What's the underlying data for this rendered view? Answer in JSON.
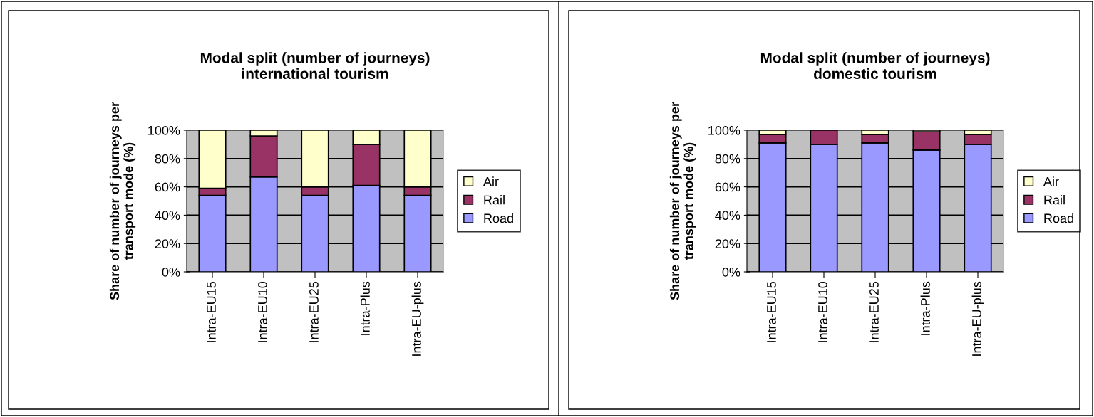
{
  "chart_data": [
    {
      "type": "bar",
      "title": "Modal split (number of journeys)\ninternational tourism",
      "ylabel": "Share of number of journeys per\ntransport mode (%)",
      "categories": [
        "Intra-EU15",
        "Intra-EU10",
        "Intra-EU25",
        "Intra-Plus",
        "Intra-EU-plus"
      ],
      "stacked": true,
      "series": [
        {
          "name": "Road",
          "color": "#9999ff",
          "values": [
            54,
            67,
            54,
            61,
            54
          ]
        },
        {
          "name": "Rail",
          "color": "#993366",
          "values": [
            5,
            29,
            6,
            29,
            6
          ]
        },
        {
          "name": "Air",
          "color": "#ffffcc",
          "values": [
            41,
            4,
            40,
            10,
            40
          ]
        }
      ],
      "ylim": [
        0,
        100
      ],
      "yticks": [
        {
          "value": 0,
          "label": "0%"
        },
        {
          "value": 20,
          "label": "20%"
        },
        {
          "value": 40,
          "label": "40%"
        },
        {
          "value": 60,
          "label": "60%"
        },
        {
          "value": 80,
          "label": "80%"
        },
        {
          "value": 100,
          "label": "100%"
        }
      ],
      "grid": "y",
      "legend": "right"
    },
    {
      "type": "bar",
      "title": "Modal split (number of journeys)\ndomestic tourism",
      "ylabel": "Share of number of journeys per\ntransport mode (%)",
      "categories": [
        "Intra-EU15",
        "Intra-EU10",
        "Intra-EU25",
        "Intra-Plus",
        "Intra-EU-plus"
      ],
      "stacked": true,
      "series": [
        {
          "name": "Road",
          "color": "#9999ff",
          "values": [
            91,
            90,
            91,
            86,
            90
          ]
        },
        {
          "name": "Rail",
          "color": "#993366",
          "values": [
            6,
            10,
            6,
            13,
            7
          ]
        },
        {
          "name": "Air",
          "color": "#ffffcc",
          "values": [
            3,
            null,
            3,
            1,
            3
          ]
        }
      ],
      "ylim": [
        0,
        100
      ],
      "yticks": [
        {
          "value": 0,
          "label": "0%"
        },
        {
          "value": 20,
          "label": "20%"
        },
        {
          "value": 40,
          "label": "40%"
        },
        {
          "value": 60,
          "label": "60%"
        },
        {
          "value": 80,
          "label": "80%"
        },
        {
          "value": 100,
          "label": "100%"
        }
      ],
      "grid": "y",
      "legend": "right"
    }
  ]
}
